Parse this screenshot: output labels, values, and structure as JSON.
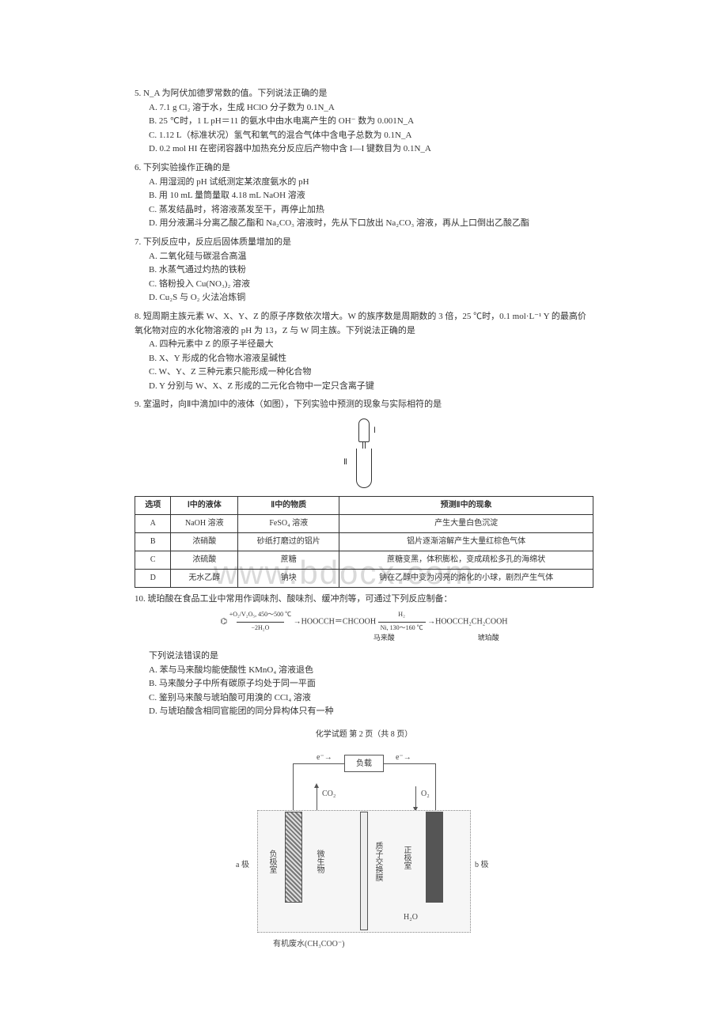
{
  "q5": {
    "stem": "5. N_A 为阿伏加德罗常数的值。下列说法正确的是",
    "A": "A. 7.1 g Cl₂ 溶于水，生成 HClO 分子数为 0.1N_A",
    "B": "B. 25 ℃时，1 L pH＝11 的氨水中由水电离产生的 OH⁻ 数为 0.001N_A",
    "C": "C. 1.12 L（标准状况）氢气和氧气的混合气体中含电子总数为 0.1N_A",
    "D": "D. 0.2 mol HI 在密闭容器中加热充分反应后产物中含 I—I 键数目为 0.1N_A"
  },
  "q6": {
    "stem": "6. 下列实验操作正确的是",
    "A": "A. 用湿润的 pH 试纸测定某浓度氨水的 pH",
    "B": "B. 用 10 mL 量筒量取 4.18 mL NaOH 溶液",
    "C": "C. 蒸发结晶时，将溶液蒸发至干，再停止加热",
    "D": "D. 用分液漏斗分离乙酸乙酯和 Na₂CO₃ 溶液时，先从下口放出 Na₂CO₃ 溶液，再从上口倒出乙酸乙酯"
  },
  "q7": {
    "stem": "7. 下列反应中，反应后固体质量增加的是",
    "A": "A. 二氧化硅与碳混合高温",
    "B": "B. 水蒸气通过灼热的铁粉",
    "C": "C. 铬粉投入 Cu(NO₃)₂ 溶液",
    "D": "D. Cu₂S 与 O₂ 火法冶炼铜"
  },
  "q8": {
    "stem": "8. 短周期主族元素 W、X、Y、Z 的原子序数依次增大。W 的族序数是周期数的 3 倍，25 ℃时，0.1 mol·L⁻¹ Y 的最高价氧化物对应的水化物溶液的 pH 为 13，Z 与 W 同主族。下列说法正确的是",
    "A": "A. 四种元素中 Z 的原子半径最大",
    "B": "B. X、Y 形成的化合物水溶液呈碱性",
    "C": "C. W、Y、Z 三种元素只能形成一种化合物",
    "D": "D. Y 分别与 W、X、Z 形成的二元化合物中一定只含离子键"
  },
  "q9": {
    "stem": "9. 室温时，向Ⅱ中滴加Ⅰ中的液体（如图），下列实验中预测的现象与实际相符的是",
    "labelI": "Ⅰ",
    "labelII": "Ⅱ",
    "table": {
      "headers": [
        "选项",
        "Ⅰ中的液体",
        "Ⅱ中的物质",
        "预测Ⅱ中的现象"
      ],
      "rows": [
        [
          "A",
          "NaOH 溶液",
          "FeSO₄ 溶液",
          "产生大量白色沉淀"
        ],
        [
          "B",
          "浓硝酸",
          "砂纸打磨过的铝片",
          "铝片逐渐溶解产生大量红棕色气体"
        ],
        [
          "C",
          "浓硫酸",
          "蔗糖",
          "蔗糖变黑，体积膨松，变成疏松多孔的海绵状"
        ],
        [
          "D",
          "无水乙醇",
          "钠块",
          "钠在乙醇中变为闪亮的熔化的小球，剧烈产生气体"
        ]
      ]
    }
  },
  "q10": {
    "stem": "10. 琥珀酸在食品工业中常用作调味剂、酸味剂、缓冲剂等，可通过下列反应制备：",
    "reaction_left": "（苯环）",
    "reaction_cond1": "+O₂/V₂O₅, 450～500 ℃",
    "reaction_cond1b": "−2H₂O",
    "reaction_mid": "HOOCCH＝CHCOOH",
    "reaction_midlabel": "马来酸",
    "reaction_cond2": "H₂",
    "reaction_cond2b": "Ni, 130～160 ℃",
    "reaction_right": "HOOCCH₂CH₂COOH",
    "reaction_rightlabel": "琥珀酸",
    "pre": "下列说法错误的是",
    "A": "A. 苯与马来酸均能使酸性 KMnO₄ 溶液退色",
    "B": "B. 马来酸分子中所有碳原子均处于同一平面",
    "C": "C. 鉴别马来酸与琥珀酸可用溴的 CCl₄ 溶液",
    "D": "D. 与琥珀酸含相同官能团的同分异构体只有一种"
  },
  "footer": "化学试题  第 2 页（共 8 页）",
  "watermark": "www.bdocx.com",
  "cell": {
    "load": "负载",
    "co2": "CO₂",
    "o2": "O₂",
    "aLabel": "a 极",
    "bLabel": "b 极",
    "anodeRoom": "负极室",
    "microbe": "微生物",
    "pem": "质子交换膜",
    "cathodeRoom": "正极室",
    "h2o": "H₂O",
    "waste": "有机废水(CH₃COO⁻)"
  },
  "colors": {
    "text": "#333333",
    "border": "#333333",
    "watermark": "#d9d9d9",
    "diagramLine": "#555555",
    "diagramDot": "#888888",
    "bg": "#ffffff"
  }
}
